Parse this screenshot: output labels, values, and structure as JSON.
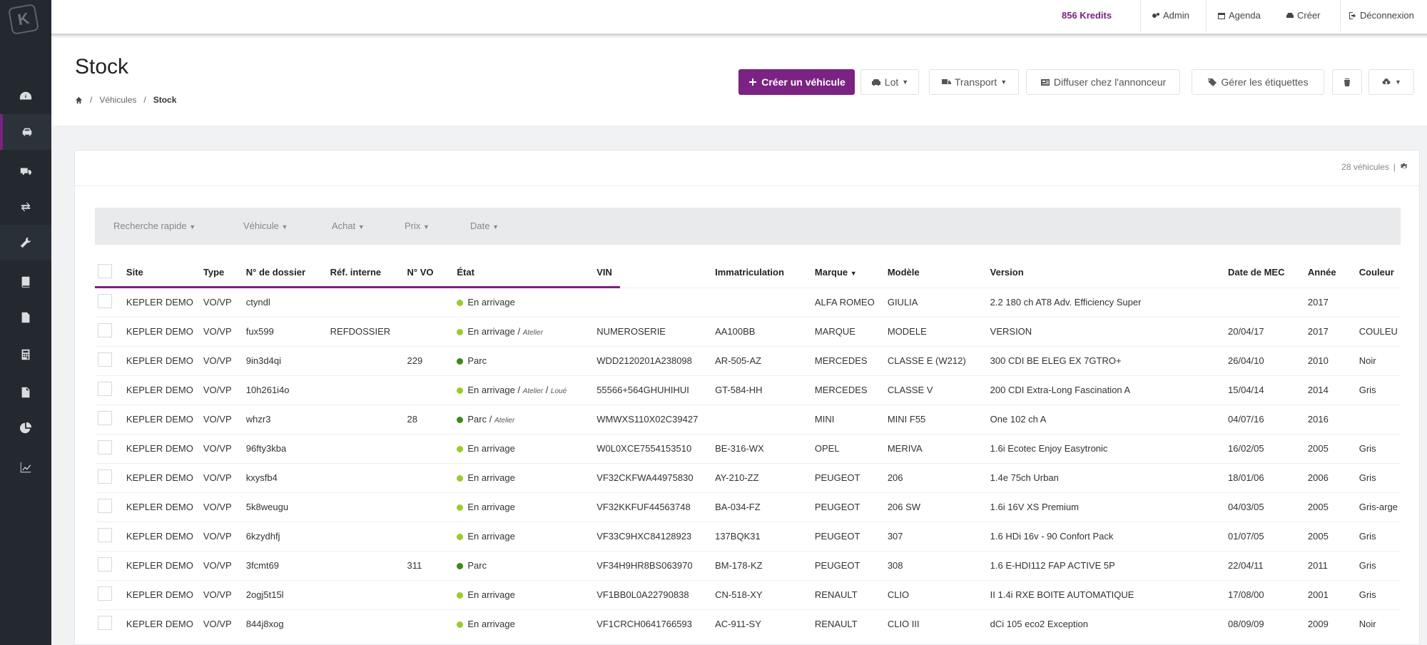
{
  "topbar": {
    "kredits": "856 Kredits",
    "admin": "Admin",
    "agenda": "Agenda",
    "creer": "Créer",
    "deconnexion": "Déconnexion"
  },
  "sidebar": {
    "logo": "K",
    "items": [
      "dashboard-icon",
      "car-icon",
      "truck-icon",
      "exchange-icon",
      "wrench-icon",
      "book-icon",
      "document-icon",
      "calculator-icon",
      "file-icon",
      "pie-icon",
      "chart-icon"
    ]
  },
  "header": {
    "title": "Stock",
    "breadcrumb": [
      "Véhicules",
      "Stock"
    ],
    "buttons": {
      "create": "Créer un véhicule",
      "lot": "Lot",
      "transport": "Transport",
      "diffuser": "Diffuser chez l'annonceur",
      "etiquettes": "Gérer les étiquettes"
    }
  },
  "panel": {
    "count": "28 véhicules"
  },
  "filters": [
    "Recherche rapide",
    "Véhicule",
    "Achat",
    "Prix",
    "Date"
  ],
  "table": {
    "columns": [
      "Site",
      "Type",
      "N° de dossier",
      "Réf. interne",
      "N° VO",
      "État",
      "VIN",
      "Immatriculation",
      "Marque",
      "Modèle",
      "Version",
      "Date de MEC",
      "Année",
      "Couleur"
    ],
    "rows": [
      {
        "site": "KEPLER DEMO",
        "type": "VO/VP",
        "dossier": "ctyndl",
        "ref": "",
        "vo": "",
        "etat": "En arrivage",
        "dot": "light",
        "sub1": "",
        "sub2": "",
        "vin": "",
        "immat": "",
        "marque": "ALFA ROMEO",
        "modele": "GIULIA",
        "version": "2.2 180 ch AT8 Adv. Efficiency Super",
        "mec": "",
        "annee": "2017",
        "couleur": ""
      },
      {
        "site": "KEPLER DEMO",
        "type": "VO/VP",
        "dossier": "fux599",
        "ref": "REFDOSSIER",
        "vo": "",
        "etat": "En arrivage",
        "dot": "light",
        "sub1": "Atelier",
        "sub2": "",
        "vin": "NUMEROSERIE",
        "immat": "AA100BB",
        "marque": "MARQUE",
        "modele": "MODELE",
        "version": "VERSION",
        "mec": "20/04/17",
        "annee": "2017",
        "couleur": "COULEU"
      },
      {
        "site": "KEPLER DEMO",
        "type": "VO/VP",
        "dossier": "9in3d4qi",
        "ref": "",
        "vo": "229",
        "etat": "Parc",
        "dot": "dark",
        "sub1": "",
        "sub2": "",
        "vin": "WDD2120201A238098",
        "immat": "AR-505-AZ",
        "marque": "MERCEDES",
        "modele": "CLASSE E (W212)",
        "version": "300 CDI BE ELEG EX 7GTRO+",
        "mec": "26/04/10",
        "annee": "2010",
        "couleur": "Noir"
      },
      {
        "site": "KEPLER DEMO",
        "type": "VO/VP",
        "dossier": "10h261i4o",
        "ref": "",
        "vo": "",
        "etat": "En arrivage",
        "dot": "light",
        "sub1": "Atelier",
        "sub2": "Loué",
        "vin": "55566+564GHUHIHUI",
        "immat": "GT-584-HH",
        "marque": "MERCEDES",
        "modele": "CLASSE V",
        "version": "200 CDI Extra-Long Fascination A",
        "mec": "15/04/14",
        "annee": "2014",
        "couleur": "Gris"
      },
      {
        "site": "KEPLER DEMO",
        "type": "VO/VP",
        "dossier": "whzr3",
        "ref": "",
        "vo": "28",
        "etat": "Parc",
        "dot": "dark",
        "sub1": "Atelier",
        "sub2": "",
        "vin": "WMWXS110X02C39427",
        "immat": "",
        "marque": "MINI",
        "modele": "MINI F55",
        "version": "One 102 ch A",
        "mec": "04/07/16",
        "annee": "2016",
        "couleur": ""
      },
      {
        "site": "KEPLER DEMO",
        "type": "VO/VP",
        "dossier": "96fty3kba",
        "ref": "",
        "vo": "",
        "etat": "En arrivage",
        "dot": "light",
        "sub1": "",
        "sub2": "",
        "vin": "W0L0XCE7554153510",
        "immat": "BE-316-WX",
        "marque": "OPEL",
        "modele": "MERIVA",
        "version": "1.6i Ecotec Enjoy Easytronic",
        "mec": "16/02/05",
        "annee": "2005",
        "couleur": "Gris"
      },
      {
        "site": "KEPLER DEMO",
        "type": "VO/VP",
        "dossier": "kxysfb4",
        "ref": "",
        "vo": "",
        "etat": "En arrivage",
        "dot": "light",
        "sub1": "",
        "sub2": "",
        "vin": "VF32CKFWA44975830",
        "immat": "AY-210-ZZ",
        "marque": "PEUGEOT",
        "modele": "206",
        "version": "1.4e 75ch Urban",
        "mec": "18/01/06",
        "annee": "2006",
        "couleur": "Gris"
      },
      {
        "site": "KEPLER DEMO",
        "type": "VO/VP",
        "dossier": "5k8weugu",
        "ref": "",
        "vo": "",
        "etat": "En arrivage",
        "dot": "light",
        "sub1": "",
        "sub2": "",
        "vin": "VF32KKFUF44563748",
        "immat": "BA-034-FZ",
        "marque": "PEUGEOT",
        "modele": "206 SW",
        "version": "1.6i 16V XS Premium",
        "mec": "04/03/05",
        "annee": "2005",
        "couleur": "Gris-arge"
      },
      {
        "site": "KEPLER DEMO",
        "type": "VO/VP",
        "dossier": "6kzydhfj",
        "ref": "",
        "vo": "",
        "etat": "En arrivage",
        "dot": "light",
        "sub1": "",
        "sub2": "",
        "vin": "VF33C9HXC84128923",
        "immat": "137BQK31",
        "marque": "PEUGEOT",
        "modele": "307",
        "version": "1.6 HDi 16v - 90 Confort Pack",
        "mec": "01/07/05",
        "annee": "2005",
        "couleur": "Gris"
      },
      {
        "site": "KEPLER DEMO",
        "type": "VO/VP",
        "dossier": "3fcmt69",
        "ref": "",
        "vo": "311",
        "etat": "Parc",
        "dot": "dark",
        "sub1": "",
        "sub2": "",
        "vin": "VF34H9HR8BS063970",
        "immat": "BM-178-KZ",
        "marque": "PEUGEOT",
        "modele": "308",
        "version": "1.6 E-HDI112 FAP ACTIVE 5P",
        "mec": "22/04/11",
        "annee": "2011",
        "couleur": "Gris"
      },
      {
        "site": "KEPLER DEMO",
        "type": "VO/VP",
        "dossier": "2ogj5t15l",
        "ref": "",
        "vo": "",
        "etat": "En arrivage",
        "dot": "light",
        "sub1": "",
        "sub2": "",
        "vin": "VF1BB0L0A22790838",
        "immat": "CN-518-XY",
        "marque": "RENAULT",
        "modele": "CLIO",
        "version": "II 1.4i RXE BOITE AUTOMATIQUE",
        "mec": "17/08/00",
        "annee": "2001",
        "couleur": "Gris"
      },
      {
        "site": "KEPLER DEMO",
        "type": "VO/VP",
        "dossier": "844j8xog",
        "ref": "",
        "vo": "",
        "etat": "En arrivage",
        "dot": "light",
        "sub1": "",
        "sub2": "",
        "vin": "VF1CRCH0641766593",
        "immat": "AC-911-SY",
        "marque": "RENAULT",
        "modele": "CLIO III",
        "version": "dCi 105 eco2 Exception",
        "mec": "08/09/09",
        "annee": "2009",
        "couleur": "Noir"
      }
    ]
  }
}
